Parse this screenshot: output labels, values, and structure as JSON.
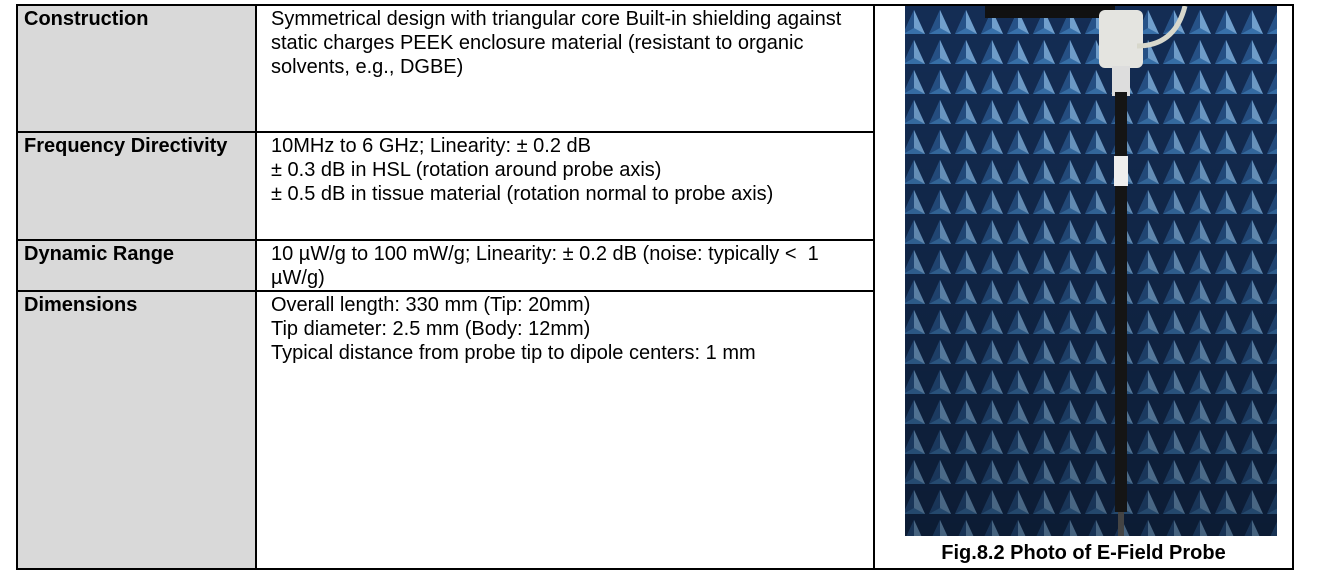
{
  "table": {
    "rows": [
      {
        "label": "Construction",
        "lines": [
          "Symmetrical design with triangular core Built-in shielding against static charges PEEK enclosure material (resistant to organic solvents, e.g., DGBE)"
        ]
      },
      {
        "label": "Frequency Directivity",
        "lines": [
          "10MHz to 6 GHz; Linearity: ± 0.2 dB",
          "± 0.3 dB in HSL (rotation around probe axis)",
          "± 0.5 dB in tissue material (rotation normal to probe axis)"
        ]
      },
      {
        "label": "Dynamic Range",
        "lines": [
          "10 µW/g to 100 mW/g; Linearity: ± 0.2 dB (noise: typically <  1 µW/g)"
        ]
      },
      {
        "label": "Dimensions",
        "lines": [
          "Overall length: 330 mm (Tip: 20mm)",
          "Tip diameter: 2.5 mm (Body: 12mm)",
          "Typical distance from probe tip to dipole centers: 1 mm"
        ]
      }
    ]
  },
  "figure": {
    "caption": "Fig.8.2 Photo of E-Field Probe"
  }
}
